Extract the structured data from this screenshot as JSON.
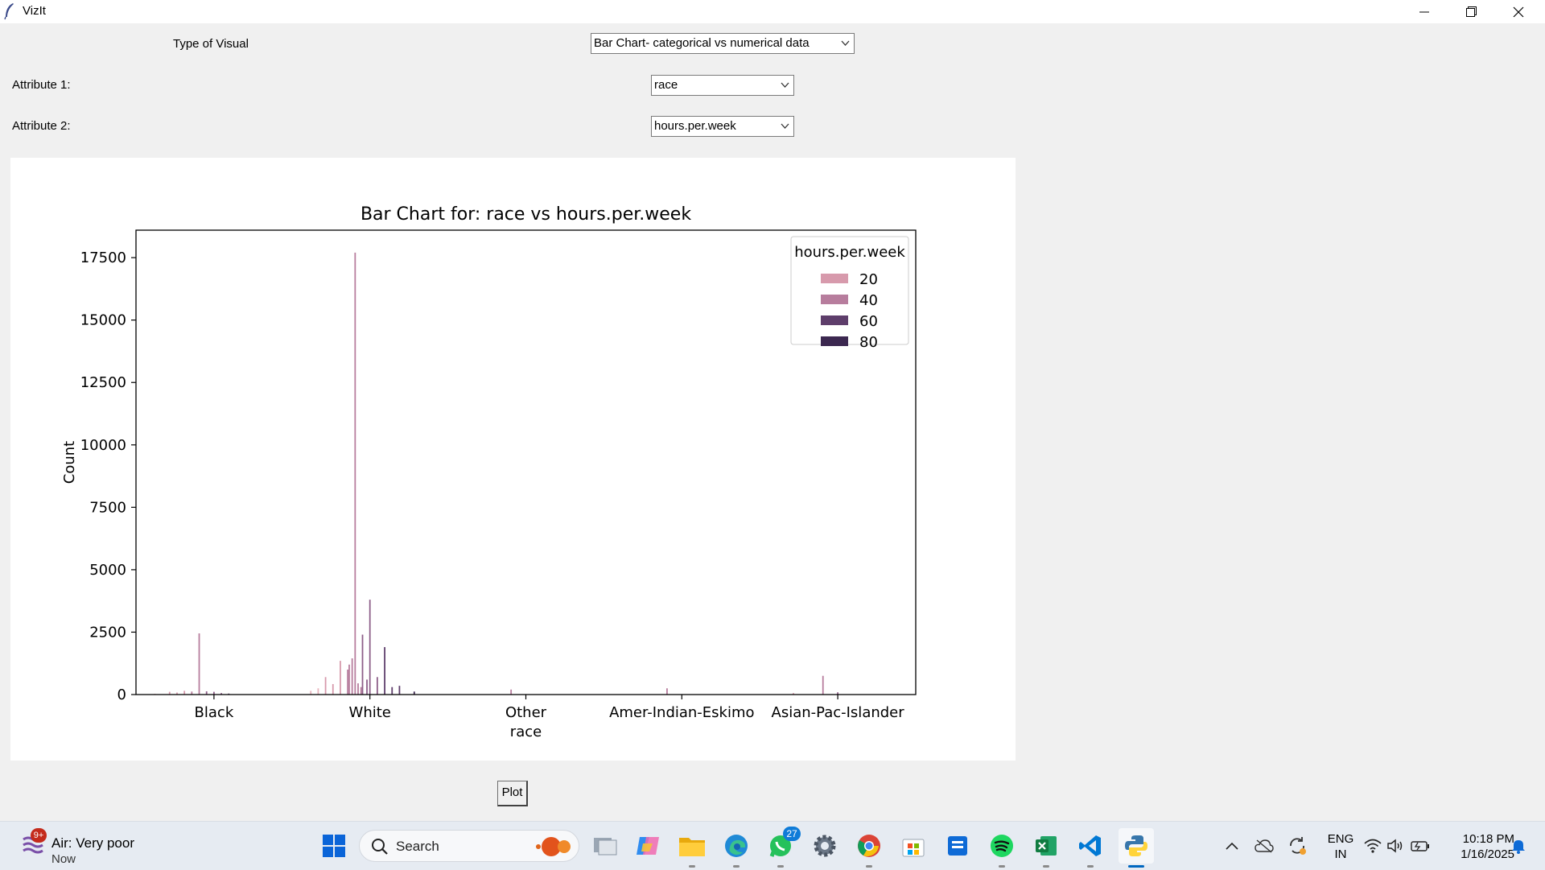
{
  "window": {
    "title": "VizIt"
  },
  "form": {
    "visual_label": "Type of Visual",
    "visual_value": "Bar Chart- categorical vs numerical data",
    "attr1_label": "Attribute 1:",
    "attr1_value": "race",
    "attr2_label": "Attribute 2:",
    "attr2_value": "hours.per.week",
    "plot_button": "Plot"
  },
  "chart_data": {
    "type": "bar",
    "title": "Bar Chart for: race vs hours.per.week",
    "xlabel": "",
    "ylabel": "Count",
    "ylim": [
      0,
      18600
    ],
    "yticks": [
      0,
      2500,
      5000,
      7500,
      10000,
      12500,
      15000,
      17500
    ],
    "categories": [
      "Black",
      "White",
      "Other\nrace",
      "Amer-Indian-Eskimo",
      "Asian-Pac-Islander"
    ],
    "legend": {
      "title": "hours.per.week",
      "entries": [
        "20",
        "40",
        "60",
        "80"
      ],
      "position": "top-right"
    },
    "series": [
      {
        "category": "Black",
        "hours": [
          10,
          20,
          25,
          30,
          35,
          40,
          45,
          50,
          55,
          60
        ],
        "counts": [
          30,
          110,
          80,
          150,
          120,
          2450,
          130,
          110,
          60,
          40
        ]
      },
      {
        "category": "White",
        "hours": [
          10,
          15,
          20,
          25,
          30,
          35,
          36,
          38,
          40,
          42,
          44,
          45,
          48,
          50,
          55,
          60,
          65,
          70,
          80
        ],
        "counts": [
          150,
          250,
          700,
          420,
          1350,
          1000,
          1200,
          1450,
          17700,
          450,
          300,
          2400,
          600,
          3800,
          700,
          1900,
          300,
          350,
          120
        ]
      },
      {
        "category": "Other\nrace",
        "hours": [
          40
        ],
        "counts": [
          200
        ]
      },
      {
        "category": "Amer-Indian-Eskimo",
        "hours": [
          40
        ],
        "counts": [
          250
        ]
      },
      {
        "category": "Asian-Pac-Islander",
        "hours": [
          20,
          40,
          50
        ],
        "counts": [
          60,
          750,
          90
        ]
      }
    ],
    "palette": [
      "#e8b4bd",
      "#d79aac",
      "#b77d9d",
      "#8e5f89",
      "#5e3e6b",
      "#3c2850"
    ]
  },
  "taskbar": {
    "weather_text": "Air: Very poor",
    "weather_time": "Now",
    "weather_badge": "9+",
    "search_placeholder": "Search",
    "whatsapp_badge": "27",
    "lang_line1": "ENG",
    "lang_line2": "IN",
    "time": "10:18 PM",
    "date": "1/16/2025"
  }
}
